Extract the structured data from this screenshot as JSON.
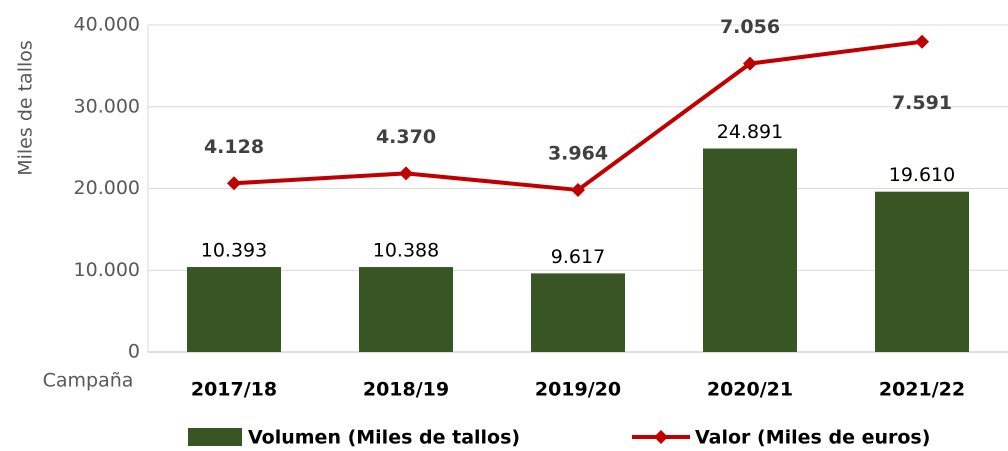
{
  "chart_data": {
    "type": "bar_line",
    "y_axis_label": "Miles de tallos",
    "x_axis_label": "Campaña",
    "categories": [
      "2017/18",
      "2018/19",
      "2019/20",
      "2020/21",
      "2021/22"
    ],
    "series": [
      {
        "name": "Volumen (Miles de tallos)",
        "type": "bar",
        "color": "#375623",
        "values": [
          10393,
          10388,
          9617,
          24891,
          19610
        ],
        "value_labels": [
          "10.393",
          "10.388",
          "9.617",
          "24.891",
          "19.610"
        ]
      },
      {
        "name": "Valor (Miles de euros)",
        "type": "line",
        "axis": "y2",
        "color": "#c00000",
        "values": [
          4128,
          4370,
          3964,
          7056,
          7591
        ],
        "value_labels": [
          "4.128",
          "4.370",
          "3.964",
          "7.056",
          "7.591"
        ]
      }
    ],
    "ylim": [
      0,
      40000
    ],
    "yticks": [
      0,
      {
        "value": 10000,
        "label": "10.000"
      },
      {
        "value": 20000,
        "label": "20.000"
      },
      {
        "value": 30000,
        "label": "30.000"
      },
      {
        "value": 40000,
        "label": "40.000"
      }
    ],
    "y2lim": [
      0,
      8000
    ],
    "grid": true,
    "legend": "bottom"
  }
}
